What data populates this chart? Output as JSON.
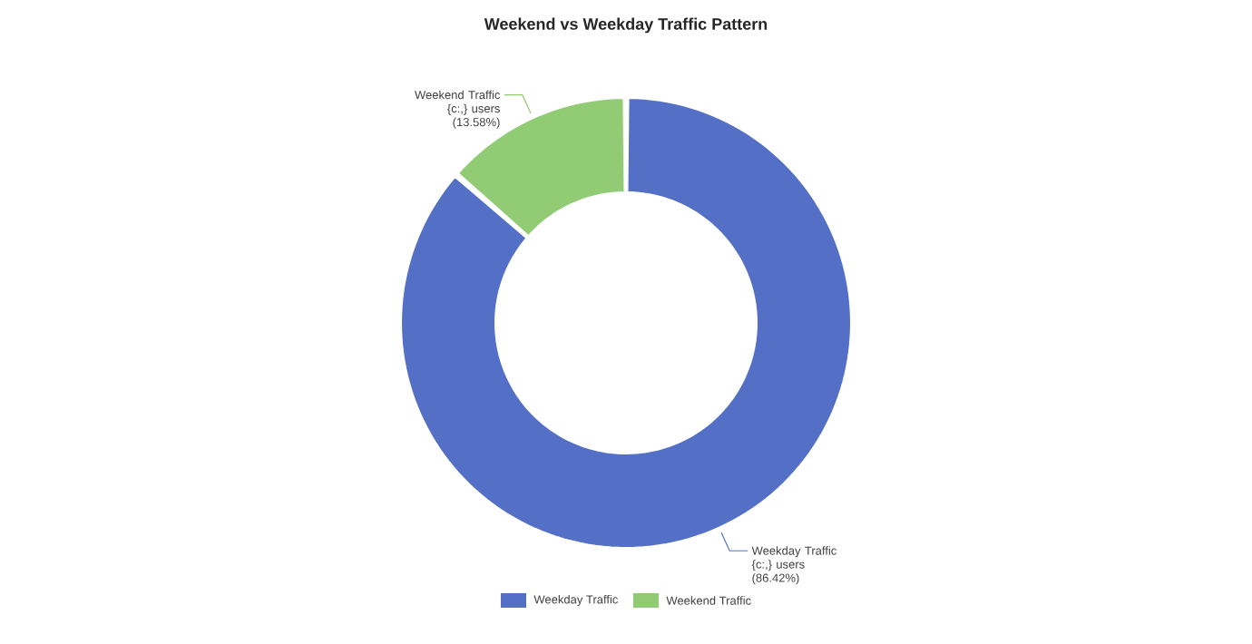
{
  "chart_data": {
    "type": "donut",
    "title": "Weekend vs Weekday Traffic Pattern",
    "categories": [
      "Weekday Traffic",
      "Weekend Traffic"
    ],
    "values": [
      86.42,
      13.58
    ],
    "colors": [
      "#5470c6",
      "#91cc75"
    ],
    "value_labels": [
      "{c:,} users (86.42%)",
      "{c:,} users (13.58%)"
    ],
    "legend": "bottom"
  }
}
